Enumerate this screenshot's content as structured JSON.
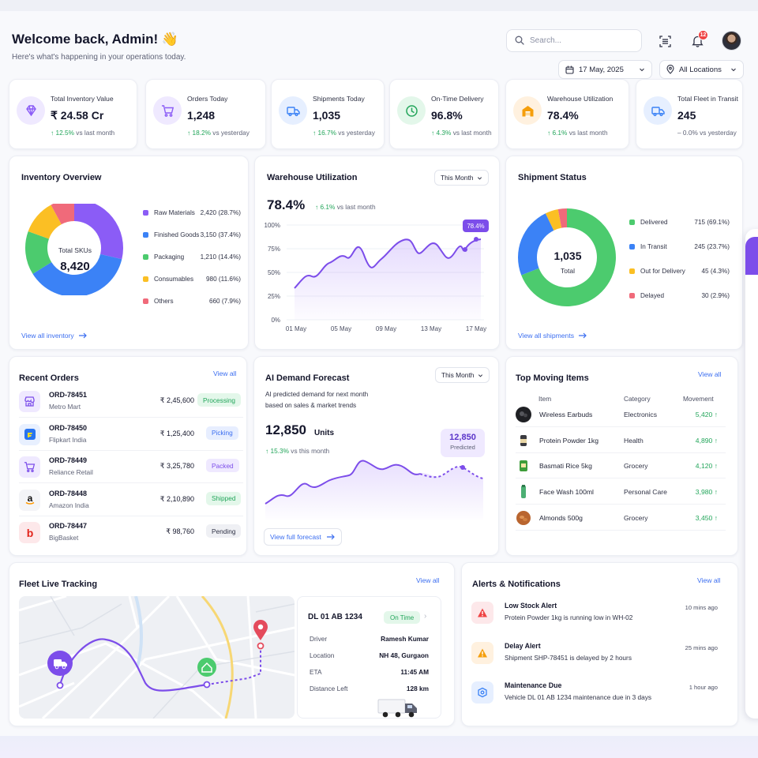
{
  "header": {
    "title": "Welcome back, Admin! 👋",
    "subtitle": "Here's what's happening in your operations today.",
    "search_placeholder": "Search...",
    "notification_count": "12",
    "date": "17 May, 2025",
    "location": "All Locations"
  },
  "kpis": [
    {
      "label": "Total Inventory Value",
      "value": "₹ 24.58 Cr",
      "delta": "↑ 12.5%",
      "context": "vs last month",
      "icon": "gem-icon",
      "color": "#8b5cf6",
      "bg": "#efe9ff"
    },
    {
      "label": "Orders Today",
      "value": "1,248",
      "delta": "↑ 18.2%",
      "context": "vs yesterday",
      "icon": "cart-icon",
      "color": "#8b5cf6",
      "bg": "#efe9ff"
    },
    {
      "label": "Shipments Today",
      "value": "1,035",
      "delta": "↑ 16.7%",
      "context": "vs yesterday",
      "icon": "truck-icon",
      "color": "#3b82f6",
      "bg": "#e6efff"
    },
    {
      "label": "On-Time Delivery",
      "value": "96.8%",
      "delta": "↑ 4.3%",
      "context": "vs last month",
      "icon": "clock-icon",
      "color": "#22a55a",
      "bg": "#e3f7ea"
    },
    {
      "label": "Warehouse Utilization",
      "value": "78.4%",
      "delta": "↑ 6.1%",
      "context": "vs last month",
      "icon": "warehouse-icon",
      "color": "#f59e0b",
      "bg": "#fff1df"
    },
    {
      "label": "Total Fleet in Transit",
      "value": "245",
      "delta": "– 0.0%",
      "context": "vs yesterday",
      "icon": "truck-icon",
      "color": "#3b82f6",
      "bg": "#e6efff"
    }
  ],
  "inventory": {
    "title": "Inventory Overview",
    "center_label": "Total SKUs",
    "center_value": "8,420",
    "link": "View all inventory",
    "legend": [
      {
        "label": "Raw Materials",
        "value": "2,420 (28.7%)",
        "color": "#8b5cf6"
      },
      {
        "label": "Finished Goods",
        "value": "3,150 (37.4%)",
        "color": "#3b82f6"
      },
      {
        "label": "Packaging",
        "value": "1,210 (14.4%)",
        "color": "#4ccb6e"
      },
      {
        "label": "Consumables",
        "value": "980 (11.6%)",
        "color": "#fbbf24"
      },
      {
        "label": "Others",
        "value": "660 (7.9%)",
        "color": "#f06a7a"
      }
    ]
  },
  "warehouse": {
    "title": "Warehouse Utilization",
    "period": "This Month",
    "value": "78.4%",
    "delta": "↑ 6.1%",
    "context": "vs last month",
    "tooltip": "78.4%",
    "y_ticks": [
      "100%",
      "75%",
      "50%",
      "25%",
      "0%"
    ],
    "x_ticks": [
      "01 May",
      "05 May",
      "09 May",
      "13 May",
      "17 May"
    ]
  },
  "shipment_status": {
    "title": "Shipment Status",
    "center_value": "1,035",
    "center_label": "Total",
    "link": "View all shipments",
    "legend": [
      {
        "label": "Delivered",
        "value": "715 (69.1%)",
        "color": "#4ccb6e"
      },
      {
        "label": "In Transit",
        "value": "245 (23.7%)",
        "color": "#3b82f6"
      },
      {
        "label": "Out for Delivery",
        "value": "45 (4.3%)",
        "color": "#fbbf24"
      },
      {
        "label": "Delayed",
        "value": "30 (2.9%)",
        "color": "#f06a7a"
      }
    ]
  },
  "recent_orders": {
    "title": "Recent Orders",
    "link": "View all",
    "rows": [
      {
        "id": "ORD-78451",
        "customer": "Metro Mart",
        "amount": "₹ 2,45,600",
        "status": "Processing",
        "status_fg": "#22a55a",
        "status_bg": "#e3f7ea",
        "logo": "store-icon"
      },
      {
        "id": "ORD-78450",
        "customer": "Flipkart India",
        "amount": "₹ 1,25,400",
        "status": "Picking",
        "status_fg": "#3b6ef0",
        "status_bg": "#e7eeff",
        "logo": "flipkart-logo"
      },
      {
        "id": "ORD-78449",
        "customer": "Reliance Retail",
        "amount": "₹ 3,25,780",
        "status": "Packed",
        "status_fg": "#7c4dea",
        "status_bg": "#efe9ff",
        "logo": "cart-icon"
      },
      {
        "id": "ORD-78448",
        "customer": "Amazon India",
        "amount": "₹ 2,10,890",
        "status": "Shipped",
        "status_fg": "#22a55a",
        "status_bg": "#e3f7ea",
        "logo": "amazon-logo"
      },
      {
        "id": "ORD-78447",
        "customer": "BigBasket",
        "amount": "₹ 98,760",
        "status": "Pending",
        "status_fg": "#2f3245",
        "status_bg": "#eff0f4",
        "logo": "bigbasket-logo"
      }
    ]
  },
  "forecast": {
    "title": "AI Demand Forecast",
    "period": "This Month",
    "desc_line1": "AI predicted demand for next month",
    "desc_line2": "based on sales & market trends",
    "value": "12,850",
    "unit": "Units",
    "delta": "↑ 15.3%",
    "context": "vs this month",
    "tip_value": "12,850",
    "tip_label": "Predicted",
    "link": "View full forecast"
  },
  "top_moving": {
    "title": "Top Moving Items",
    "link": "View all",
    "headers": [
      "Item",
      "Category",
      "Movement"
    ],
    "rows": [
      {
        "item": "Wireless Earbuds",
        "category": "Electronics",
        "movement": "5,420 ↑"
      },
      {
        "item": "Protein Powder 1kg",
        "category": "Health",
        "movement": "4,890 ↑"
      },
      {
        "item": "Basmati Rice 5kg",
        "category": "Grocery",
        "movement": "4,120 ↑"
      },
      {
        "item": "Face Wash 100ml",
        "category": "Personal Care",
        "movement": "3,980 ↑"
      },
      {
        "item": "Almonds 500g",
        "category": "Grocery",
        "movement": "3,450 ↑"
      }
    ]
  },
  "fleet": {
    "title": "Fleet Live Tracking",
    "link": "View all",
    "vehicle": "DL 01 AB 1234",
    "status": "On Time",
    "details": [
      {
        "label": "Driver",
        "value": "Ramesh Kumar"
      },
      {
        "label": "Location",
        "value": "NH 48, Gurgaon"
      },
      {
        "label": "ETA",
        "value": "11:45 AM"
      },
      {
        "label": "Distance Left",
        "value": "128 km"
      }
    ]
  },
  "alerts": {
    "title": "Alerts & Notifications",
    "link": "View all",
    "rows": [
      {
        "title": "Low Stock Alert",
        "desc": "Protein Powder 1kg is running low in WH-02",
        "time": "10 mins ago",
        "color": "#ef4444",
        "bg": "#fde8ea"
      },
      {
        "title": "Delay Alert",
        "desc": "Shipment SHP-78451 is delayed by 2 hours",
        "time": "25 mins ago",
        "color": "#f59e0b",
        "bg": "#fff1df"
      },
      {
        "title": "Maintenance Due",
        "desc": "Vehicle DL 01 AB 1234 maintenance due in 3 days",
        "time": "1 hour ago",
        "color": "#3b82f6",
        "bg": "#e6efff"
      }
    ]
  }
}
